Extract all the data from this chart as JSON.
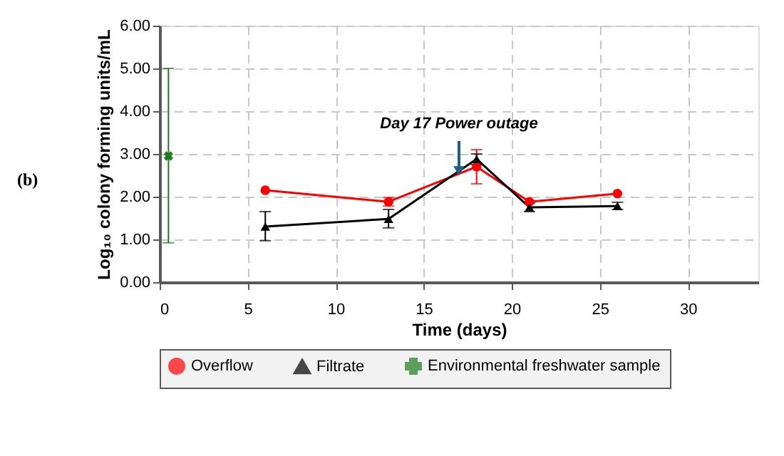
{
  "chart_data": {
    "type": "line",
    "xlabel": "Time (days)",
    "ylabel": "Log₁₀ colony forming units/mL",
    "xlim": [
      0,
      34
    ],
    "xticks": [
      0,
      5,
      10,
      15,
      20,
      25,
      30
    ],
    "ylim": [
      0,
      6
    ],
    "yticks": [
      {
        "value": 0,
        "label": "0.00"
      },
      {
        "value": 1,
        "label": "1.00"
      },
      {
        "value": 2,
        "label": "2.00"
      },
      {
        "value": 3,
        "label": "3.00"
      },
      {
        "value": 4,
        "label": "4.00"
      },
      {
        "value": 5,
        "label": "5.00"
      },
      {
        "value": 6,
        "label": "6.00"
      }
    ],
    "grid": true,
    "legend": "bottom",
    "series": [
      {
        "name": "Overflow",
        "marker": "circle",
        "color": "#ff0000",
        "x": [
          6,
          13,
          18,
          21,
          26
        ],
        "values": [
          2.15,
          1.88,
          2.7,
          1.88,
          2.07
        ],
        "errors": [
          null,
          0.1,
          [
            2.3,
            3.1
          ],
          null,
          null
        ]
      },
      {
        "name": "Filtrate",
        "marker": "triangle",
        "color": "#000000",
        "x": [
          6,
          13,
          18,
          21,
          26
        ],
        "values": [
          1.3,
          1.48,
          2.88,
          1.75,
          1.78
        ],
        "errors": [
          [
            0.97,
            1.65
          ],
          [
            1.27,
            1.7
          ],
          [
            2.75,
            3.0
          ],
          [
            1.65,
            1.85
          ],
          [
            1.7,
            1.87
          ]
        ]
      },
      {
        "name": "Environmental freshwater sample",
        "marker": "cross",
        "color": "#1e7b1e",
        "x": [
          0.5
        ],
        "values": [
          2.95
        ],
        "errors": [
          [
            0.92,
            5.0
          ]
        ]
      }
    ],
    "annotations": [
      "(b)",
      {
        "text": "Day 17 Power outage",
        "x": 17,
        "y": 2.6
      }
    ]
  }
}
